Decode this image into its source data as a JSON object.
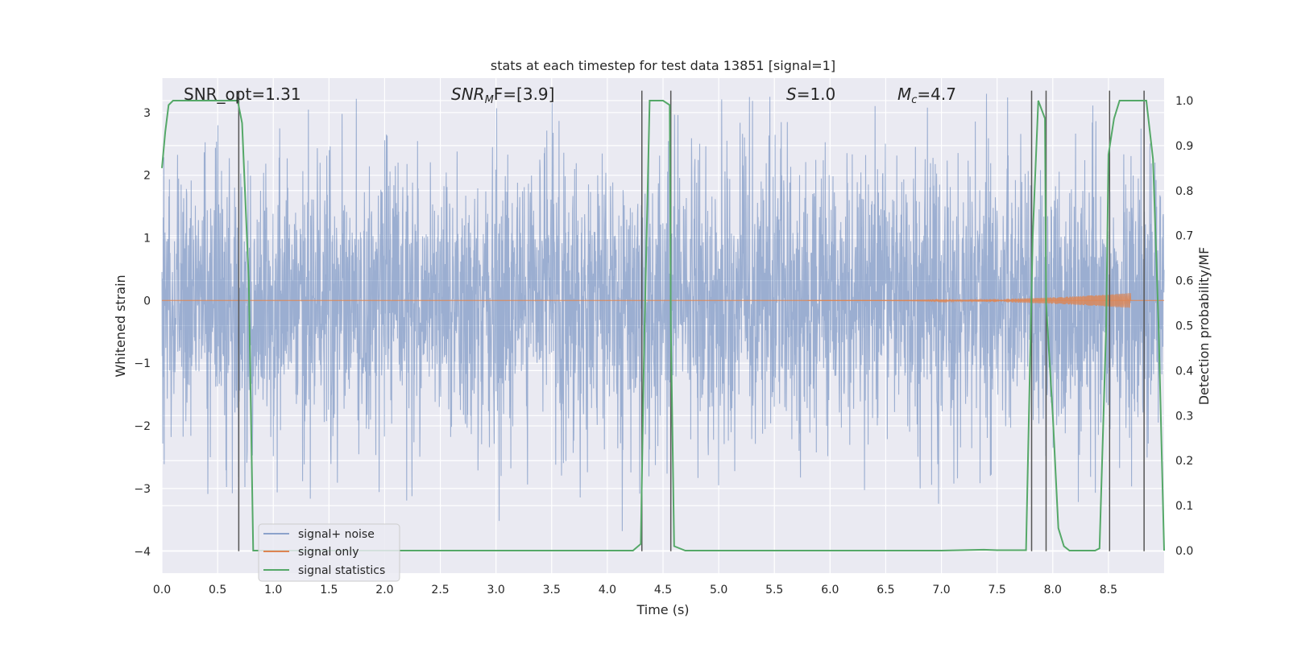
{
  "chart_data": {
    "type": "line",
    "title": "stats at each timestep for test data 13851 [signal=1]",
    "xlabel": "Time (s)",
    "ylabel": "Whitened strain",
    "ylabel_right": "Detection probability/MF",
    "xlim": [
      0,
      9.0
    ],
    "ylim": [
      -4.35,
      3.55
    ],
    "ylim_right": [
      -0.05,
      1.05
    ],
    "grid": true,
    "legend_placement": "lower-left",
    "x_ticks": [
      0.0,
      0.5,
      1.0,
      1.5,
      2.0,
      2.5,
      3.0,
      3.5,
      4.0,
      4.5,
      5.0,
      5.5,
      6.0,
      6.5,
      7.0,
      7.5,
      8.0,
      8.5
    ],
    "x_tick_labels": [
      "0.0",
      "0.5",
      "1.0",
      "1.5",
      "2.0",
      "2.5",
      "3.0",
      "3.5",
      "4.0",
      "4.5",
      "5.0",
      "5.5",
      "6.0",
      "6.5",
      "7.0",
      "7.5",
      "8.0",
      "8.5"
    ],
    "y_ticks": [
      3,
      2,
      1,
      0,
      -1,
      -2,
      -3,
      -4
    ],
    "y_tick_labels": [
      "3",
      "2",
      "1",
      "0",
      "−1",
      "−2",
      "−3",
      "−4"
    ],
    "y_ticks_right": [
      1.0,
      0.9,
      0.8,
      0.7,
      0.6,
      0.5,
      0.4,
      0.3,
      0.2,
      0.1,
      0.0
    ],
    "y_tick_labels_right": [
      "1.0",
      "0.9",
      "0.8",
      "0.7",
      "0.6",
      "0.5",
      "0.4",
      "0.3",
      "0.2",
      "0.1",
      "0.0"
    ],
    "annotations": {
      "snr_opt": "SNR_opt=1.31",
      "snr_mf_main": "SNR",
      "snr_mf_sub": "M",
      "snr_mf_rest": "F=[3.9]",
      "s_main": "S",
      "s_rest": "=1.0",
      "mc_main": "M",
      "mc_sub": "c",
      "mc_rest": "=4.7"
    },
    "legend": [
      "signal+ noise",
      "signal only",
      "signal statistics"
    ],
    "colors": {
      "background": "#eaeaf2",
      "grid": "#ffffff",
      "noise": "#4c72b0",
      "signal": "#dd8452",
      "statistics": "#55a868",
      "vlines": "#555555"
    },
    "noise_series": {
      "name": "signal+ noise",
      "x_range": [
        0,
        9.0
      ],
      "envelope_typical": [
        -1.9,
        1.9
      ],
      "extreme_min": -4.0,
      "extreme_max": 3.3
    },
    "signal_series": {
      "name": "signal only",
      "chirp_start": 5.8,
      "chirp_peak_time": 8.7,
      "chirp_peak_amplitude": 0.12
    },
    "statistics_series": {
      "name": "signal statistics",
      "x": [
        0.0,
        0.03,
        0.06,
        0.1,
        0.2,
        0.3,
        0.5,
        0.68,
        0.72,
        0.78,
        0.82,
        1.0,
        2.0,
        3.0,
        4.0,
        4.23,
        4.3,
        4.33,
        4.38,
        4.42,
        4.5,
        4.56,
        4.57,
        4.6,
        4.7,
        5.0,
        6.0,
        7.0,
        7.38,
        7.5,
        7.7,
        7.76,
        7.82,
        7.87,
        7.93,
        7.94,
        8.0,
        8.05,
        8.1,
        8.15,
        8.2,
        8.3,
        8.38,
        8.42,
        8.48,
        8.5,
        8.55,
        8.6,
        8.7,
        8.84,
        8.9,
        8.95,
        9.0
      ],
      "y": [
        0.85,
        0.93,
        0.99,
        1.0,
        1.0,
        1.0,
        1.0,
        1.0,
        0.95,
        0.6,
        0.0,
        0.0,
        0.0,
        0.0,
        0.0,
        0.0,
        0.015,
        0.45,
        1.0,
        1.0,
        1.0,
        0.99,
        0.5,
        0.01,
        0.0,
        0.0,
        0.0,
        0.0,
        0.002,
        0.001,
        0.001,
        0.001,
        0.7,
        1.0,
        0.96,
        0.55,
        0.3,
        0.05,
        0.01,
        0.0,
        0.0,
        0.0,
        0.0,
        0.005,
        0.5,
        0.88,
        0.96,
        1.0,
        1.0,
        1.0,
        0.87,
        0.5,
        0.0
      ]
    },
    "vertical_lines": [
      {
        "x": 0.69,
        "ymin": -4.0,
        "ymax": 3.35
      },
      {
        "x": 4.31,
        "ymin": -4.0,
        "ymax": 3.35
      },
      {
        "x": 4.57,
        "ymin": -4.0,
        "ymax": 3.35
      },
      {
        "x": 7.81,
        "ymin": -4.0,
        "ymax": 3.35
      },
      {
        "x": 7.94,
        "ymin": -4.0,
        "ymax": 3.35
      },
      {
        "x": 8.51,
        "ymin": -4.0,
        "ymax": 3.35
      },
      {
        "x": 8.82,
        "ymin": -4.0,
        "ymax": 3.35
      }
    ]
  }
}
